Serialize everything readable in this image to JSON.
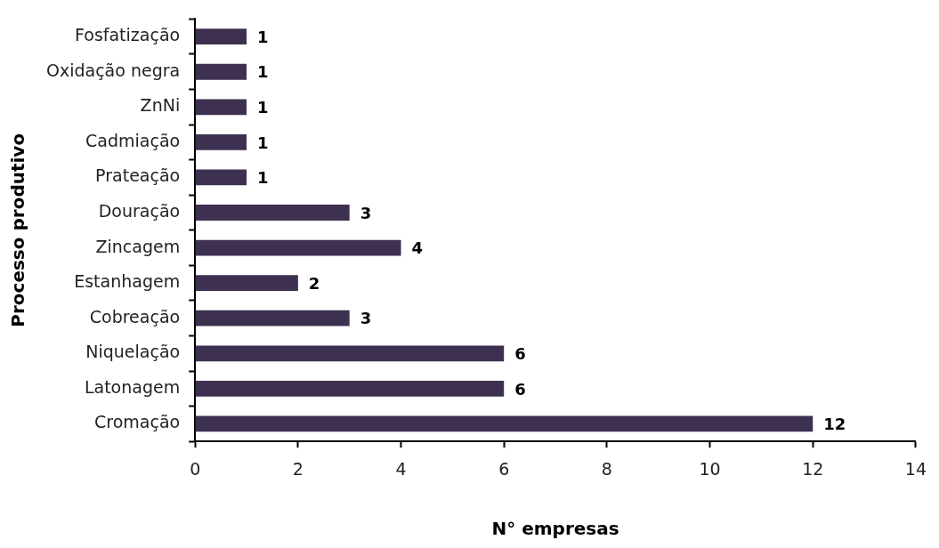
{
  "chart_data": {
    "type": "bar",
    "orientation": "horizontal",
    "xlabel": "N° empresas",
    "ylabel": "Processo produtivo",
    "categories": [
      "Fosfatização",
      "Oxidação negra",
      "ZnNi",
      "Cadmiação",
      "Prateação",
      "Douração",
      "Zincagem",
      "Estanhagem",
      "Cobreação",
      "Niquelação",
      "Latonagem",
      "Cromação"
    ],
    "values": [
      1,
      1,
      1,
      1,
      1,
      3,
      4,
      2,
      3,
      6,
      6,
      12
    ],
    "color": "#3d3050",
    "xlim": [
      0,
      14
    ],
    "xticks": [
      0,
      2,
      4,
      6,
      8,
      10,
      12,
      14
    ],
    "data_labels": true
  }
}
